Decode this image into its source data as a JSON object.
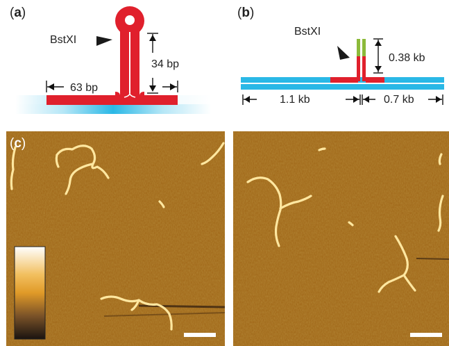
{
  "panels": {
    "a": {
      "letter": "a",
      "enzyme": "BstXI",
      "stem_length": "34 bp",
      "arm_length": "63 bp"
    },
    "b": {
      "letter": "b",
      "enzyme": "BstXI",
      "insert_length": "0.38 kb",
      "left_length": "1.1 kb",
      "right_length": "0.7 kb"
    },
    "c": {
      "letter": "c"
    }
  },
  "colors": {
    "dna_blue": "#2ab8e6",
    "dna_red": "#e0202c",
    "dna_green": "#8cba3a",
    "afm_background": "#a8701c",
    "afm_strand": "#ffe9a8",
    "scale_bar": "#ffffff"
  },
  "colorbar": {
    "gradient": [
      "#ffffff",
      "#f2c060",
      "#e09a28",
      "#7a5228",
      "#1a1410"
    ]
  }
}
